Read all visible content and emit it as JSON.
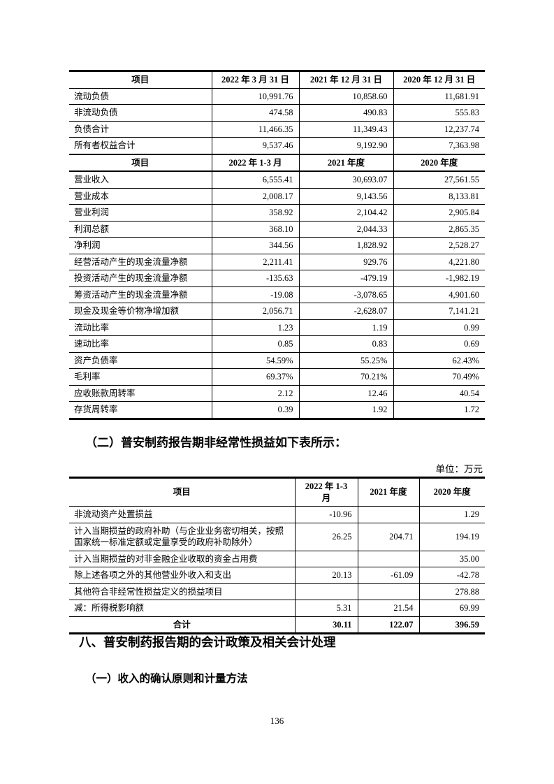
{
  "doc": {
    "section2_heading": "（二）普安制药报告期非经常性损益如下表所示：",
    "unit_label": "单位：万元",
    "section8_heading": "八、普安制药报告期的会计政策及相关会计处理",
    "section8_1_heading": "（一）收入的确认原则和计量方法",
    "page_number": "136"
  },
  "t1": {
    "h1": [
      "项目",
      "2022 年 3 月 31 日",
      "2021 年 12 月 31 日",
      "2020 年 12 月 31 日"
    ],
    "rows_a": [
      [
        "流动负债",
        "10,991.76",
        "10,858.60",
        "11,681.91"
      ],
      [
        "非流动负债",
        "474.58",
        "490.83",
        "555.83"
      ],
      [
        "负债合计",
        "11,466.35",
        "11,349.43",
        "12,237.74"
      ],
      [
        "所有者权益合计",
        "9,537.46",
        "9,192.90",
        "7,363.98"
      ]
    ],
    "h2": [
      "项目",
      "2022 年 1-3 月",
      "2021 年度",
      "2020 年度"
    ],
    "rows_b": [
      [
        "营业收入",
        "6,555.41",
        "30,693.07",
        "27,561.55"
      ],
      [
        "营业成本",
        "2,008.17",
        "9,143.56",
        "8,133.81"
      ],
      [
        "营业利润",
        "358.92",
        "2,104.42",
        "2,905.84"
      ],
      [
        "利润总额",
        "368.10",
        "2,044.33",
        "2,865.35"
      ],
      [
        "净利润",
        "344.56",
        "1,828.92",
        "2,528.27"
      ],
      [
        "经营活动产生的现金流量净额",
        "2,211.41",
        "929.76",
        "4,221.80"
      ],
      [
        "投资活动产生的现金流量净额",
        "-135.63",
        "-479.19",
        "-1,982.19"
      ],
      [
        "筹资活动产生的现金流量净额",
        "-19.08",
        "-3,078.65",
        "4,901.60"
      ],
      [
        "现金及现金等价物净增加额",
        "2,056.71",
        "-2,628.07",
        "7,141.21"
      ],
      [
        "流动比率",
        "1.23",
        "1.19",
        "0.99"
      ],
      [
        "速动比率",
        "0.85",
        "0.83",
        "0.69"
      ],
      [
        "资产负债率",
        "54.59%",
        "55.25%",
        "62.43%"
      ],
      [
        "毛利率",
        "69.37%",
        "70.21%",
        "70.49%"
      ],
      [
        "应收账款周转率",
        "2.12",
        "12.46",
        "40.54"
      ],
      [
        "存货周转率",
        "0.39",
        "1.92",
        "1.72"
      ]
    ]
  },
  "t2": {
    "h": [
      "项目",
      "2022 年 1-3 月",
      "2021 年度",
      "2020 年度"
    ],
    "rows": [
      [
        "非流动资产处置损益",
        "-10.96",
        "",
        "1.29"
      ],
      [
        "计入当期损益的政府补助（与企业业务密切相关，按照国家统一标准定额或定量享受的政府补助除外）",
        "26.25",
        "204.71",
        "194.19"
      ],
      [
        "计入当期损益的对非金融企业收取的资金占用费",
        "",
        "",
        "35.00"
      ],
      [
        "除上述各项之外的其他营业外收入和支出",
        "20.13",
        "-61.09",
        "-42.78"
      ],
      [
        "其他符合非经常性损益定义的损益项目",
        "",
        "",
        "278.88"
      ],
      [
        "减：所得税影响额",
        "5.31",
        "21.54",
        "69.99"
      ]
    ],
    "total": [
      "合计",
      "30.11",
      "122.07",
      "396.59"
    ]
  }
}
